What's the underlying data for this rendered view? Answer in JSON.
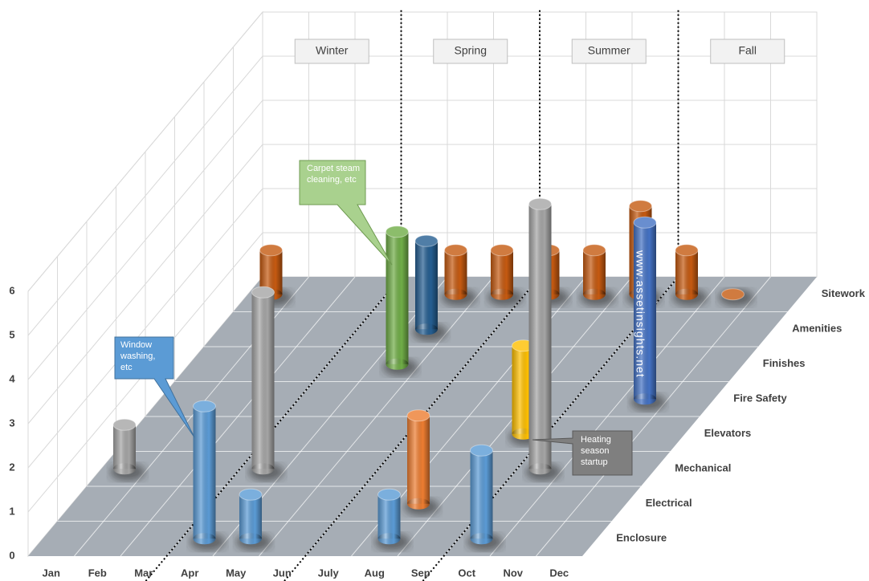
{
  "chart_data": {
    "type": "bar3d",
    "categories": [
      "Jan",
      "Feb",
      "Mar",
      "Apr",
      "May",
      "Jun",
      "July",
      "Aug",
      "Sep",
      "Oct",
      "Nov",
      "Dec"
    ],
    "series": [
      {
        "name": "Enclosure",
        "color": "#5b9bd5",
        "values": [
          null,
          null,
          null,
          3,
          1,
          null,
          null,
          1,
          null,
          2,
          null,
          null
        ]
      },
      {
        "name": "Electrical",
        "color": "#ed7d31",
        "values": [
          null,
          null,
          null,
          null,
          null,
          null,
          null,
          2,
          null,
          null,
          null,
          null
        ]
      },
      {
        "name": "Mechanical",
        "color": "#a5a5a5",
        "values": [
          1,
          null,
          null,
          4,
          null,
          null,
          null,
          null,
          null,
          6,
          null,
          null
        ]
      },
      {
        "name": "Elevators",
        "color": "#ffc000",
        "values": [
          null,
          null,
          null,
          null,
          null,
          null,
          null,
          null,
          2,
          null,
          null,
          null
        ]
      },
      {
        "name": "Fire Safety",
        "color": "#4472c4",
        "values": [
          null,
          null,
          null,
          null,
          null,
          null,
          null,
          null,
          null,
          null,
          4,
          null
        ]
      },
      {
        "name": "Finishes",
        "color": "#70ad47",
        "values": [
          null,
          null,
          null,
          null,
          3,
          null,
          null,
          null,
          null,
          null,
          null,
          null
        ]
      },
      {
        "name": "Amenities",
        "color": "#255e91",
        "values": [
          null,
          null,
          null,
          null,
          2,
          null,
          null,
          null,
          null,
          null,
          null,
          null
        ]
      },
      {
        "name": "Sitework",
        "color": "#c55a11",
        "values": [
          1,
          null,
          null,
          null,
          1,
          1,
          1,
          1,
          2,
          1,
          0,
          null
        ]
      }
    ],
    "ylim": [
      0,
      6
    ],
    "yticks": [
      0,
      1,
      2,
      3,
      4,
      5,
      6
    ],
    "grid": true,
    "season_labels": [
      "Winter",
      "Spring",
      "Summer",
      "Fall"
    ],
    "annotations": [
      "Window washing, etc",
      "Carpet steam cleaning, etc",
      "Heating season startup",
      "www.assetinsights.net"
    ]
  }
}
